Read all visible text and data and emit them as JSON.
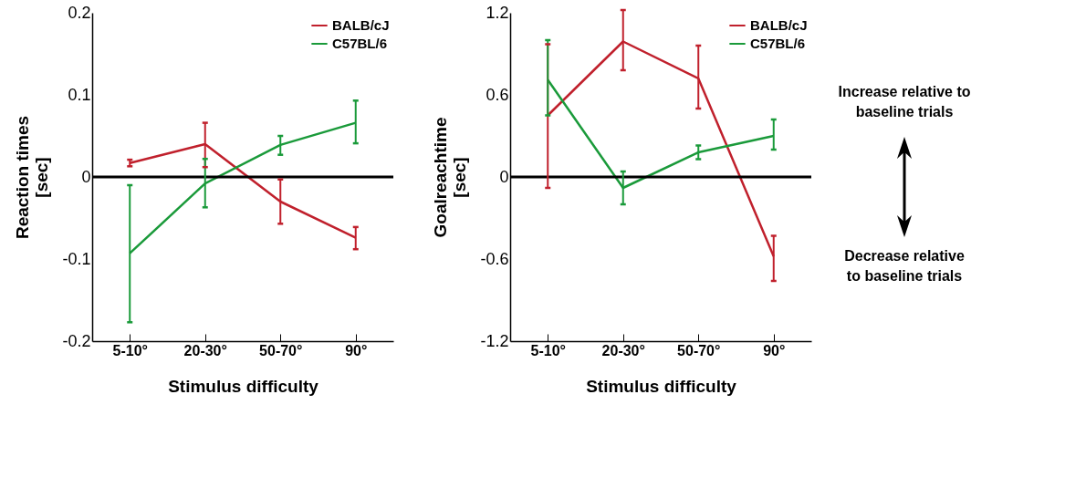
{
  "chart_data": [
    {
      "type": "line",
      "xlabel": "Stimulus difficulty",
      "ylabel": "Reaction times [sec]",
      "categories": [
        "5-10°",
        "20-30°",
        "50-70°",
        "90°"
      ],
      "ylim": [
        -0.2,
        0.2
      ],
      "yticks": [
        -0.2,
        -0.1,
        0,
        0.1,
        0.2
      ],
      "legend": "top right",
      "grid": false,
      "series": [
        {
          "name": "BALB/cJ",
          "color": "#c0202c",
          "values": [
            0.017,
            0.04,
            -0.03,
            -0.074
          ],
          "errors": [
            [
              0.013,
              0.021
            ],
            [
              0.012,
              0.066
            ],
            [
              -0.057,
              -0.003
            ],
            [
              -0.088,
              -0.061
            ]
          ]
        },
        {
          "name": "C57BL/6",
          "color": "#1a9a3a",
          "values": [
            -0.093,
            -0.008,
            0.039,
            0.066
          ],
          "errors": [
            [
              -0.177,
              -0.01
            ],
            [
              -0.037,
              0.022
            ],
            [
              0.027,
              0.05
            ],
            [
              0.041,
              0.093
            ]
          ]
        }
      ],
      "ref_lines": [
        {
          "axis": "y",
          "value": 0,
          "color": "#000000"
        }
      ]
    },
    {
      "type": "line",
      "xlabel": "Stimulus difficulty",
      "ylabel": "Goalreachtime [sec]",
      "categories": [
        "5-10°",
        "20-30°",
        "50-70°",
        "90°"
      ],
      "ylim": [
        -1.2,
        1.2
      ],
      "yticks": [
        -1.2,
        -0.6,
        0,
        0.6,
        1.2
      ],
      "legend": "top right",
      "grid": false,
      "series": [
        {
          "name": "BALB/cJ",
          "color": "#c0202c",
          "values": [
            0.45,
            0.99,
            0.72,
            -0.58
          ],
          "errors": [
            [
              -0.08,
              0.97
            ],
            [
              0.78,
              1.22
            ],
            [
              0.5,
              0.96
            ],
            [
              -0.76,
              -0.43
            ]
          ]
        },
        {
          "name": "C57BL/6",
          "color": "#1a9a3a",
          "values": [
            0.71,
            -0.08,
            0.18,
            0.3
          ],
          "errors": [
            [
              0.45,
              1.0
            ],
            [
              -0.2,
              0.04
            ],
            [
              0.13,
              0.23
            ],
            [
              0.2,
              0.42
            ]
          ]
        }
      ],
      "ref_lines": [
        {
          "axis": "y",
          "value": 0,
          "color": "#000000"
        }
      ],
      "annotations": [
        "Increase relative to baseline trials",
        "Decrease relative to baseline trials"
      ]
    }
  ]
}
